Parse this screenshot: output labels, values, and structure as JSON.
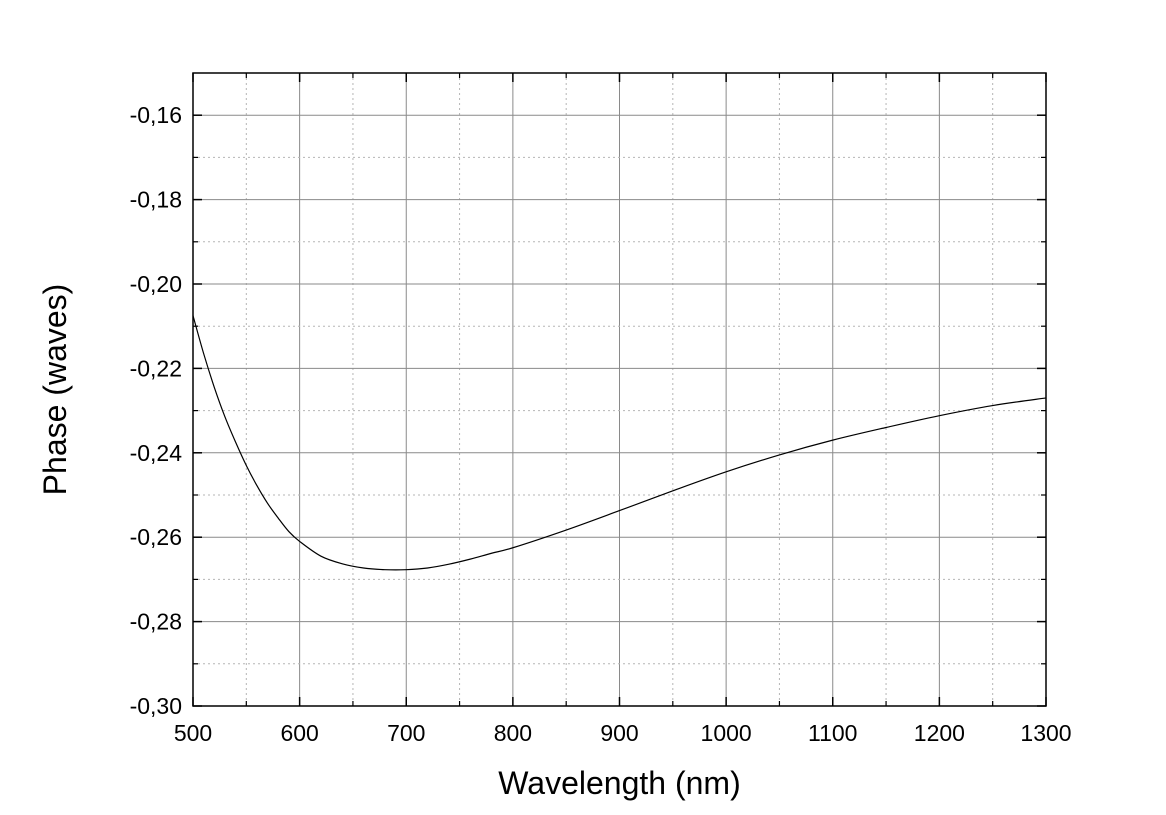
{
  "chart_data": {
    "type": "line",
    "title": "",
    "xlabel": "Wavelength (nm)",
    "ylabel": "Phase (waves)",
    "xlim": [
      500,
      1300
    ],
    "ylim": [
      -0.3,
      -0.15
    ],
    "x_ticks": [
      500,
      600,
      700,
      800,
      900,
      1000,
      1100,
      1200,
      1300
    ],
    "x_tick_labels": [
      "500",
      "600",
      "700",
      "800",
      "900",
      "1000",
      "1100",
      "1200",
      "1300"
    ],
    "y_ticks": [
      -0.3,
      -0.28,
      -0.26,
      -0.24,
      -0.22,
      -0.2,
      -0.18,
      -0.16
    ],
    "y_tick_labels": [
      "-0,30",
      "-0,28",
      "-0,26",
      "-0,24",
      "-0,22",
      "-0,20",
      "-0,18",
      "-0,16"
    ],
    "grid": true,
    "series": [
      {
        "color": "#000000",
        "x": [
          500,
          510,
          520,
          530,
          540,
          550,
          560,
          570,
          580,
          590,
          600,
          620,
          640,
          660,
          680,
          700,
          720,
          740,
          760,
          780,
          800,
          850,
          900,
          950,
          1000,
          1050,
          1100,
          1150,
          1200,
          1250,
          1300
        ],
        "y": [
          -0.2075,
          -0.2165,
          -0.2245,
          -0.2315,
          -0.2375,
          -0.243,
          -0.2478,
          -0.252,
          -0.2555,
          -0.2587,
          -0.261,
          -0.2645,
          -0.2663,
          -0.2673,
          -0.2677,
          -0.2677,
          -0.2673,
          -0.2664,
          -0.2652,
          -0.2638,
          -0.2625,
          -0.2583,
          -0.2537,
          -0.249,
          -0.2445,
          -0.2405,
          -0.237,
          -0.234,
          -0.2312,
          -0.2288,
          -0.227
        ]
      }
    ]
  }
}
